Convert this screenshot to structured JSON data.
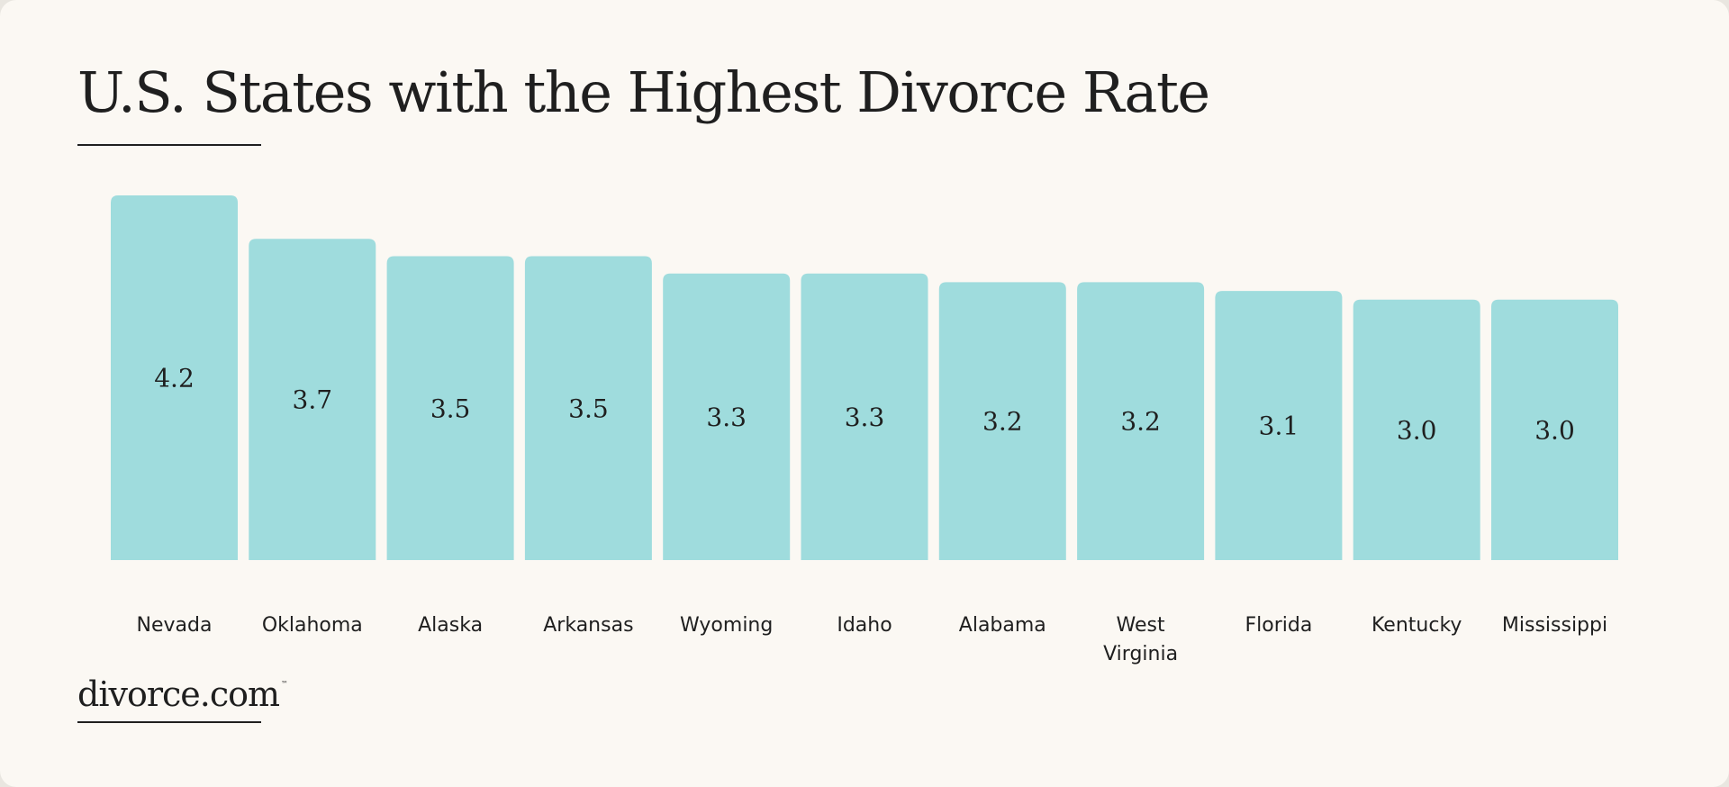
{
  "title": "U.S. States with the Highest Divorce Rate",
  "brand": {
    "name": "divorce.com",
    "trademark": "™"
  },
  "colors": {
    "bar": "#9fdcdd",
    "background": "#fbf8f3",
    "text": "#1f1f1f"
  },
  "chart_data": {
    "type": "bar",
    "title": "U.S. States with the Highest Divorce Rate",
    "xlabel": "",
    "ylabel": "",
    "ylim": [
      0,
      4.2
    ],
    "grid": false,
    "legend": "none",
    "categories": [
      "Nevada",
      "Oklahoma",
      "Alaska",
      "Arkansas",
      "Wyoming",
      "Idaho",
      "Alabama",
      "West Virginia",
      "Florida",
      "Kentucky",
      "Mississippi"
    ],
    "category_lines": [
      [
        "Nevada"
      ],
      [
        "Oklahoma"
      ],
      [
        "Alaska"
      ],
      [
        "Arkansas"
      ],
      [
        "Wyoming"
      ],
      [
        "Idaho"
      ],
      [
        "Alabama"
      ],
      [
        "West",
        "Virginia"
      ],
      [
        "Florida"
      ],
      [
        "Kentucky"
      ],
      [
        "Mississippi"
      ]
    ],
    "values": [
      4.2,
      3.7,
      3.5,
      3.5,
      3.3,
      3.3,
      3.2,
      3.2,
      3.1,
      3.0,
      3.0
    ],
    "value_labels": [
      "4.2",
      "3.7",
      "3.5",
      "3.5",
      "3.3",
      "3.3",
      "3.2",
      "3.2",
      "3.1",
      "3.0",
      "3.0"
    ]
  }
}
